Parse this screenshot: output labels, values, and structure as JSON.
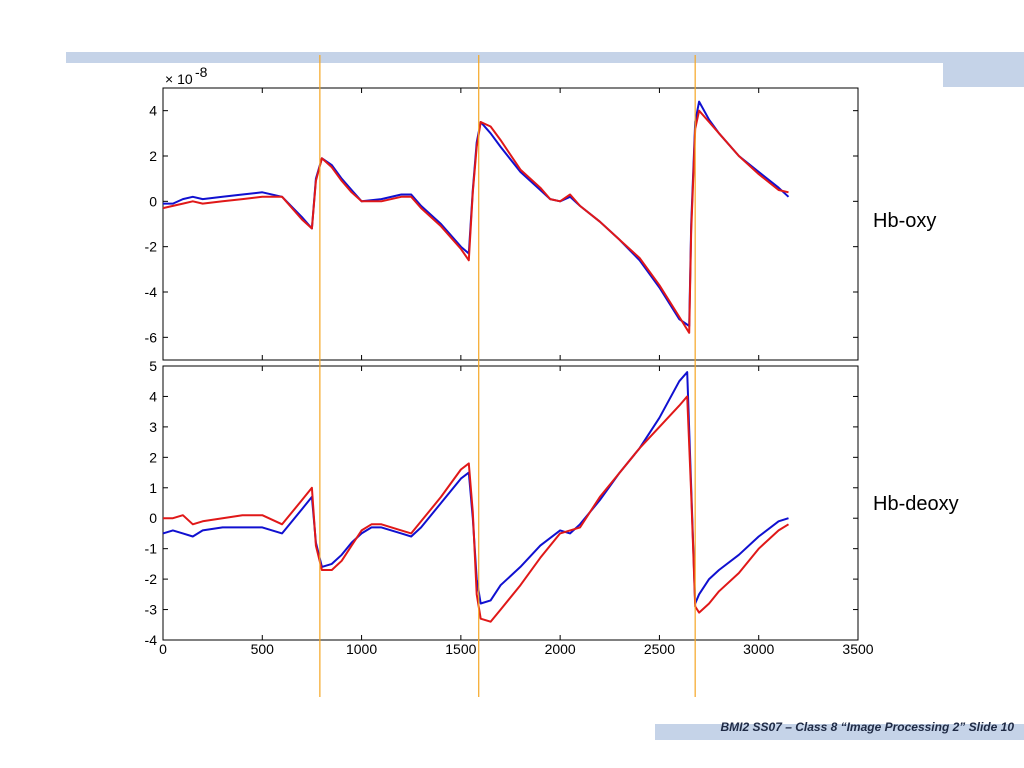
{
  "footer": {
    "text": "BMI2 SS07 – Class 8 “Image Processing 2” Slide 10"
  },
  "labels": {
    "top_panel": "Hb-oxy",
    "bottom_panel": "Hb-deoxy"
  },
  "colors": {
    "band": "#c5d3e8",
    "series_blue": "#1010d0",
    "series_red": "#e01818",
    "marker_line": "#f5a623"
  },
  "chart_data": [
    {
      "type": "line",
      "panel": "top",
      "title": "",
      "xlabel": "",
      "ylabel": "",
      "exponent_label": "× 10",
      "exponent_value": "-8",
      "xlim": [
        0,
        3500
      ],
      "ylim": [
        -7,
        5
      ],
      "yticks": [
        4,
        2,
        0,
        -2,
        -4,
        -6
      ],
      "markers_x": [
        790,
        1590,
        2680
      ],
      "series": [
        {
          "color": "blue",
          "x": [
            0,
            50,
            100,
            150,
            200,
            300,
            400,
            500,
            600,
            700,
            750,
            770,
            800,
            850,
            900,
            950,
            1000,
            1100,
            1200,
            1250,
            1300,
            1400,
            1500,
            1540,
            1560,
            1580,
            1600,
            1650,
            1700,
            1800,
            1900,
            1950,
            2000,
            2050,
            2100,
            2200,
            2300,
            2400,
            2500,
            2600,
            2650,
            2660,
            2680,
            2700,
            2750,
            2800,
            2900,
            3000,
            3100,
            3150
          ],
          "y": [
            -0.1,
            -0.1,
            0.1,
            0.2,
            0.1,
            0.2,
            0.3,
            0.4,
            0.2,
            -0.7,
            -1.2,
            1.0,
            1.9,
            1.6,
            1.0,
            0.5,
            0.0,
            0.1,
            0.3,
            0.3,
            -0.2,
            -1.0,
            -2.0,
            -2.3,
            0.5,
            2.6,
            3.5,
            3.0,
            2.4,
            1.3,
            0.5,
            0.1,
            0.0,
            0.2,
            -0.2,
            -0.9,
            -1.7,
            -2.6,
            -3.8,
            -5.2,
            -5.5,
            -1.0,
            3.5,
            4.4,
            3.6,
            3.0,
            2.0,
            1.3,
            0.6,
            0.2
          ]
        },
        {
          "color": "red",
          "x": [
            0,
            50,
            100,
            150,
            200,
            300,
            400,
            500,
            600,
            700,
            750,
            770,
            800,
            850,
            900,
            950,
            1000,
            1100,
            1200,
            1250,
            1300,
            1400,
            1500,
            1540,
            1560,
            1580,
            1600,
            1650,
            1700,
            1800,
            1900,
            1950,
            2000,
            2050,
            2100,
            2200,
            2300,
            2400,
            2500,
            2600,
            2650,
            2660,
            2680,
            2700,
            2750,
            2800,
            2900,
            3000,
            3100,
            3150
          ],
          "y": [
            -0.3,
            -0.2,
            -0.1,
            0.0,
            -0.1,
            0.0,
            0.1,
            0.2,
            0.2,
            -0.8,
            -1.2,
            0.9,
            1.9,
            1.5,
            0.9,
            0.4,
            0.0,
            0.0,
            0.2,
            0.2,
            -0.3,
            -1.1,
            -2.1,
            -2.6,
            0.4,
            2.4,
            3.5,
            3.3,
            2.7,
            1.4,
            0.6,
            0.1,
            0.0,
            0.3,
            -0.2,
            -0.9,
            -1.7,
            -2.5,
            -3.7,
            -5.1,
            -5.8,
            -1.3,
            3.2,
            4.0,
            3.5,
            3.0,
            2.0,
            1.2,
            0.5,
            0.4
          ]
        }
      ]
    },
    {
      "type": "line",
      "panel": "bottom",
      "title": "",
      "xlabel": "",
      "ylabel": "",
      "xlim": [
        0,
        3500
      ],
      "ylim": [
        -4,
        5
      ],
      "xticks": [
        0,
        500,
        1000,
        1500,
        2000,
        2500,
        3000,
        3500
      ],
      "yticks": [
        5,
        4,
        3,
        2,
        1,
        0,
        -1,
        -2,
        -3,
        -4
      ],
      "markers_x": [
        790,
        1590,
        2680
      ],
      "series": [
        {
          "color": "blue",
          "x": [
            0,
            50,
            100,
            150,
            200,
            300,
            400,
            500,
            600,
            700,
            750,
            770,
            800,
            850,
            900,
            950,
            1000,
            1050,
            1100,
            1200,
            1250,
            1300,
            1400,
            1500,
            1540,
            1560,
            1580,
            1600,
            1650,
            1700,
            1800,
            1900,
            2000,
            2050,
            2100,
            2200,
            2300,
            2400,
            2500,
            2600,
            2640,
            2660,
            2680,
            2700,
            2750,
            2800,
            2900,
            3000,
            3100,
            3150
          ],
          "y": [
            -0.5,
            -0.4,
            -0.5,
            -0.6,
            -0.4,
            -0.3,
            -0.3,
            -0.3,
            -0.5,
            0.3,
            0.7,
            -0.8,
            -1.6,
            -1.5,
            -1.2,
            -0.8,
            -0.5,
            -0.3,
            -0.3,
            -0.5,
            -0.6,
            -0.3,
            0.5,
            1.3,
            1.5,
            0.0,
            -2.0,
            -2.8,
            -2.7,
            -2.2,
            -1.6,
            -0.9,
            -0.4,
            -0.5,
            -0.2,
            0.6,
            1.5,
            2.3,
            3.3,
            4.5,
            4.8,
            1.0,
            -2.8,
            -2.5,
            -2.0,
            -1.7,
            -1.2,
            -0.6,
            -0.1,
            0.0
          ]
        },
        {
          "color": "red",
          "x": [
            0,
            50,
            100,
            150,
            200,
            300,
            400,
            500,
            600,
            700,
            750,
            770,
            800,
            850,
            900,
            950,
            1000,
            1050,
            1100,
            1200,
            1250,
            1300,
            1400,
            1500,
            1540,
            1560,
            1580,
            1600,
            1650,
            1700,
            1800,
            1900,
            2000,
            2050,
            2100,
            2200,
            2300,
            2400,
            2500,
            2600,
            2640,
            2660,
            2680,
            2700,
            2750,
            2800,
            2900,
            3000,
            3100,
            3150
          ],
          "y": [
            0.0,
            0.0,
            0.1,
            -0.2,
            -0.1,
            0.0,
            0.1,
            0.1,
            -0.2,
            0.6,
            1.0,
            -0.9,
            -1.7,
            -1.7,
            -1.4,
            -0.9,
            -0.4,
            -0.2,
            -0.2,
            -0.4,
            -0.5,
            -0.1,
            0.7,
            1.6,
            1.8,
            0.2,
            -2.5,
            -3.3,
            -3.4,
            -3.0,
            -2.2,
            -1.3,
            -0.5,
            -0.4,
            -0.3,
            0.7,
            1.5,
            2.3,
            3.0,
            3.7,
            4.0,
            0.8,
            -2.9,
            -3.1,
            -2.8,
            -2.4,
            -1.8,
            -1.0,
            -0.4,
            -0.2
          ]
        }
      ]
    }
  ]
}
